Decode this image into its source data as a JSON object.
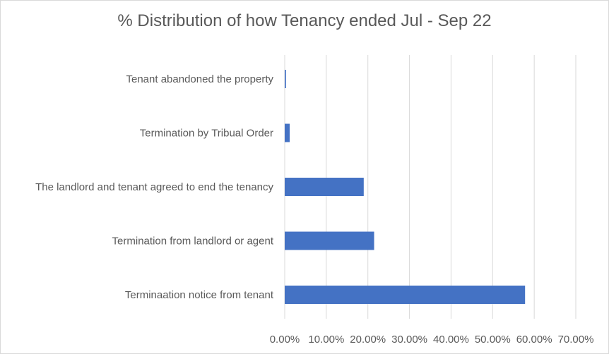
{
  "chart_data": {
    "type": "bar",
    "orientation": "horizontal",
    "title": "% Distribution of how Tenancy ended Jul - Sep 22",
    "xlabel": "",
    "ylabel": "",
    "categories": [
      "Tenant abandoned the property",
      "Termination by Tribual Order",
      "The landlord and tenant agreed to end the tenancy",
      "Termination from landlord or agent",
      "Terminaation notice from tenant"
    ],
    "values": [
      0.3,
      1.2,
      19.0,
      21.5,
      57.8
    ],
    "xlim": [
      0,
      70
    ],
    "x_ticks": [
      0,
      10,
      20,
      30,
      40,
      50,
      60,
      70
    ],
    "x_tick_labels": [
      "0.00%",
      "10.00%",
      "20.00%",
      "30.00%",
      "40.00%",
      "50.00%",
      "60.00%",
      "70.00%"
    ],
    "bar_color": "#4472c4",
    "grid": "vertical",
    "grid_color": "#d9d9d9",
    "legend": "none"
  }
}
